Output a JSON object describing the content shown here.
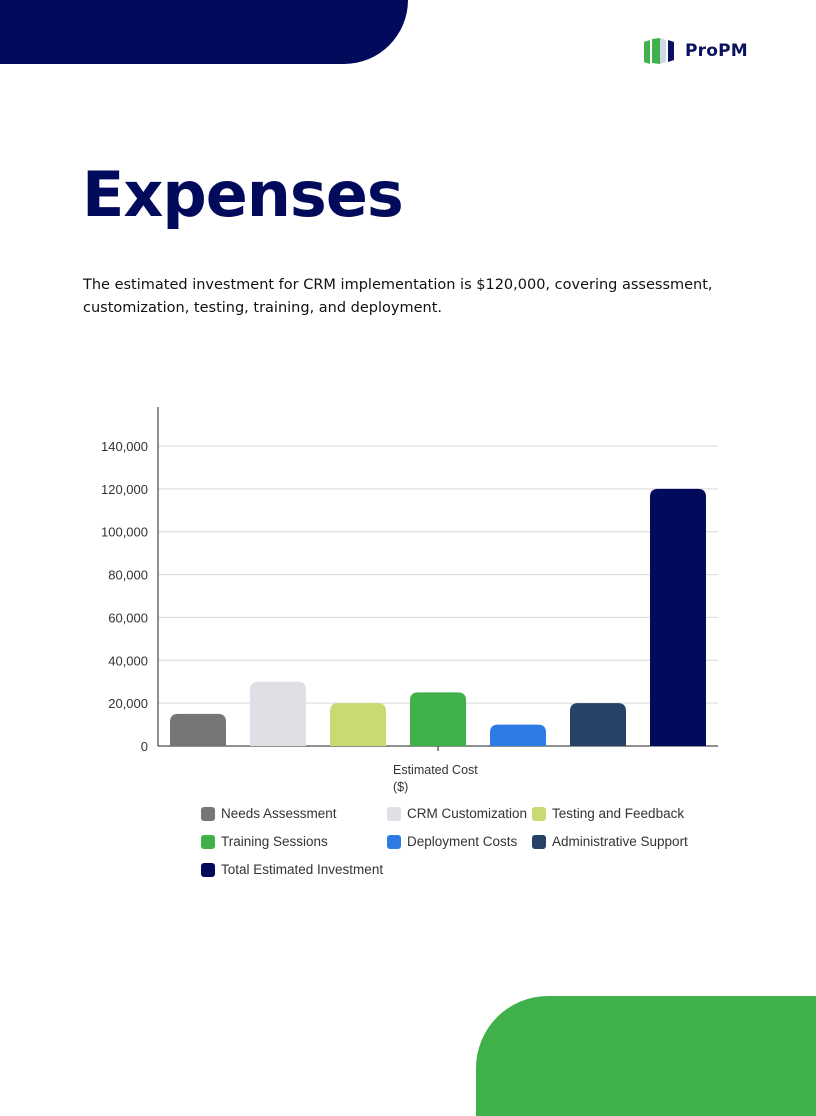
{
  "brand": {
    "name": "ProPM",
    "primary": "#020a5c",
    "accent": "#40b04a"
  },
  "header": {
    "title": "Expenses"
  },
  "intro": {
    "text": "The estimated investment for CRM implementation is $120,000, covering assessment, customization, testing, training, and deployment."
  },
  "chart_data": {
    "type": "bar",
    "xlabel": "Estimated Cost ($)",
    "categories": [
      "Estimated Cost ($)"
    ],
    "ylim": [
      0,
      140000
    ],
    "yticks": [
      "0",
      "20,000",
      "40,000",
      "60,000",
      "80,000",
      "100,000",
      "120,000",
      "140,000"
    ],
    "ytick_values": [
      0,
      20000,
      40000,
      60000,
      80000,
      100000,
      120000,
      140000
    ],
    "grid": true,
    "legend": "bottom",
    "series": [
      {
        "name": "Needs Assessment",
        "values": [
          15000
        ],
        "color": "#767676"
      },
      {
        "name": "CRM Customization",
        "values": [
          30000
        ],
        "color": "#dfe0e6"
      },
      {
        "name": "Testing and Feedback",
        "values": [
          20000
        ],
        "color": "#c8db72"
      },
      {
        "name": "Training Sessions",
        "values": [
          25000
        ],
        "color": "#40b04a"
      },
      {
        "name": "Deployment Costs",
        "values": [
          10000
        ],
        "color": "#2f7be6"
      },
      {
        "name": "Administrative Support",
        "values": [
          20000
        ],
        "color": "#264266"
      },
      {
        "name": "Total Estimated Investment",
        "values": [
          120000
        ],
        "color": "#020a5c"
      }
    ]
  }
}
